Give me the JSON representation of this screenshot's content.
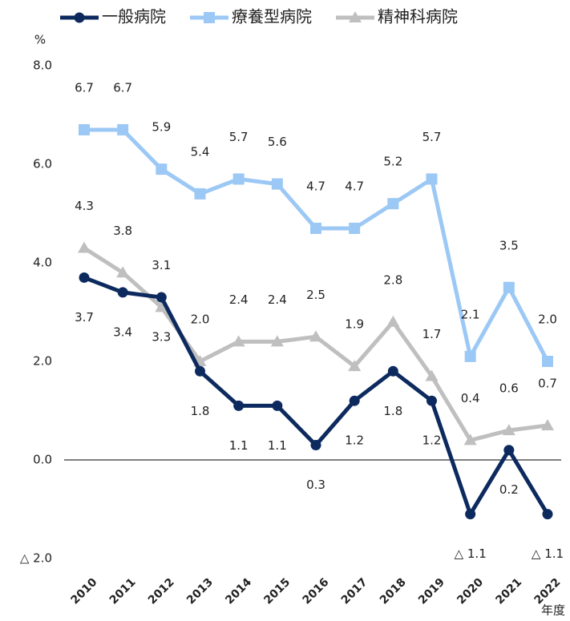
{
  "chart_data": {
    "type": "line",
    "y_label": "%",
    "x_label": "年度",
    "categories": [
      "2010",
      "2011",
      "2012",
      "2013",
      "2014",
      "2015",
      "2016",
      "2017",
      "2018",
      "2019",
      "2020",
      "2021",
      "2022"
    ],
    "series": [
      {
        "name": "一般病院",
        "color": "#0d2a5e",
        "marker": "circle",
        "values": [
          3.7,
          3.4,
          3.3,
          1.8,
          1.1,
          1.1,
          0.3,
          1.2,
          1.8,
          1.2,
          -1.1,
          0.2,
          -1.1
        ],
        "value_labels": [
          "3.7",
          "3.4",
          "3.3",
          "1.8",
          "1.1",
          "1.1",
          "0.3",
          "1.2",
          "1.8",
          "1.2",
          "△ 1.1",
          "0.2",
          "△ 1.1"
        ]
      },
      {
        "name": "療養型病院",
        "color": "#9cc8f5",
        "marker": "square",
        "values": [
          6.7,
          6.7,
          5.9,
          5.4,
          5.7,
          5.6,
          4.7,
          4.7,
          5.2,
          5.7,
          2.1,
          3.5,
          2.0
        ],
        "value_labels": [
          "6.7",
          "6.7",
          "5.9",
          "5.4",
          "5.7",
          "5.6",
          "4.7",
          "4.7",
          "5.2",
          "5.7",
          "2.1",
          "3.5",
          "2.0"
        ]
      },
      {
        "name": "精神科病院",
        "color": "#bfbfbf",
        "marker": "triangle",
        "values": [
          4.3,
          3.8,
          3.1,
          2.0,
          2.4,
          2.4,
          2.5,
          1.9,
          2.8,
          1.7,
          0.4,
          0.6,
          0.7
        ],
        "value_labels": [
          "4.3",
          "3.8",
          "3.1",
          "2.0",
          "2.4",
          "2.4",
          "2.5",
          "1.9",
          "2.8",
          "1.7",
          "0.4",
          "0.6",
          "0.7"
        ]
      }
    ],
    "ylim": [
      -2,
      8
    ],
    "yticks": [
      {
        "value": -2,
        "label": "△ 2.0"
      },
      {
        "value": 0,
        "label": "0.0"
      },
      {
        "value": 2,
        "label": "2.0"
      },
      {
        "value": 4,
        "label": "4.0"
      },
      {
        "value": 6,
        "label": "6.0"
      },
      {
        "value": 8,
        "label": "8.0"
      }
    ],
    "legend": "top"
  }
}
